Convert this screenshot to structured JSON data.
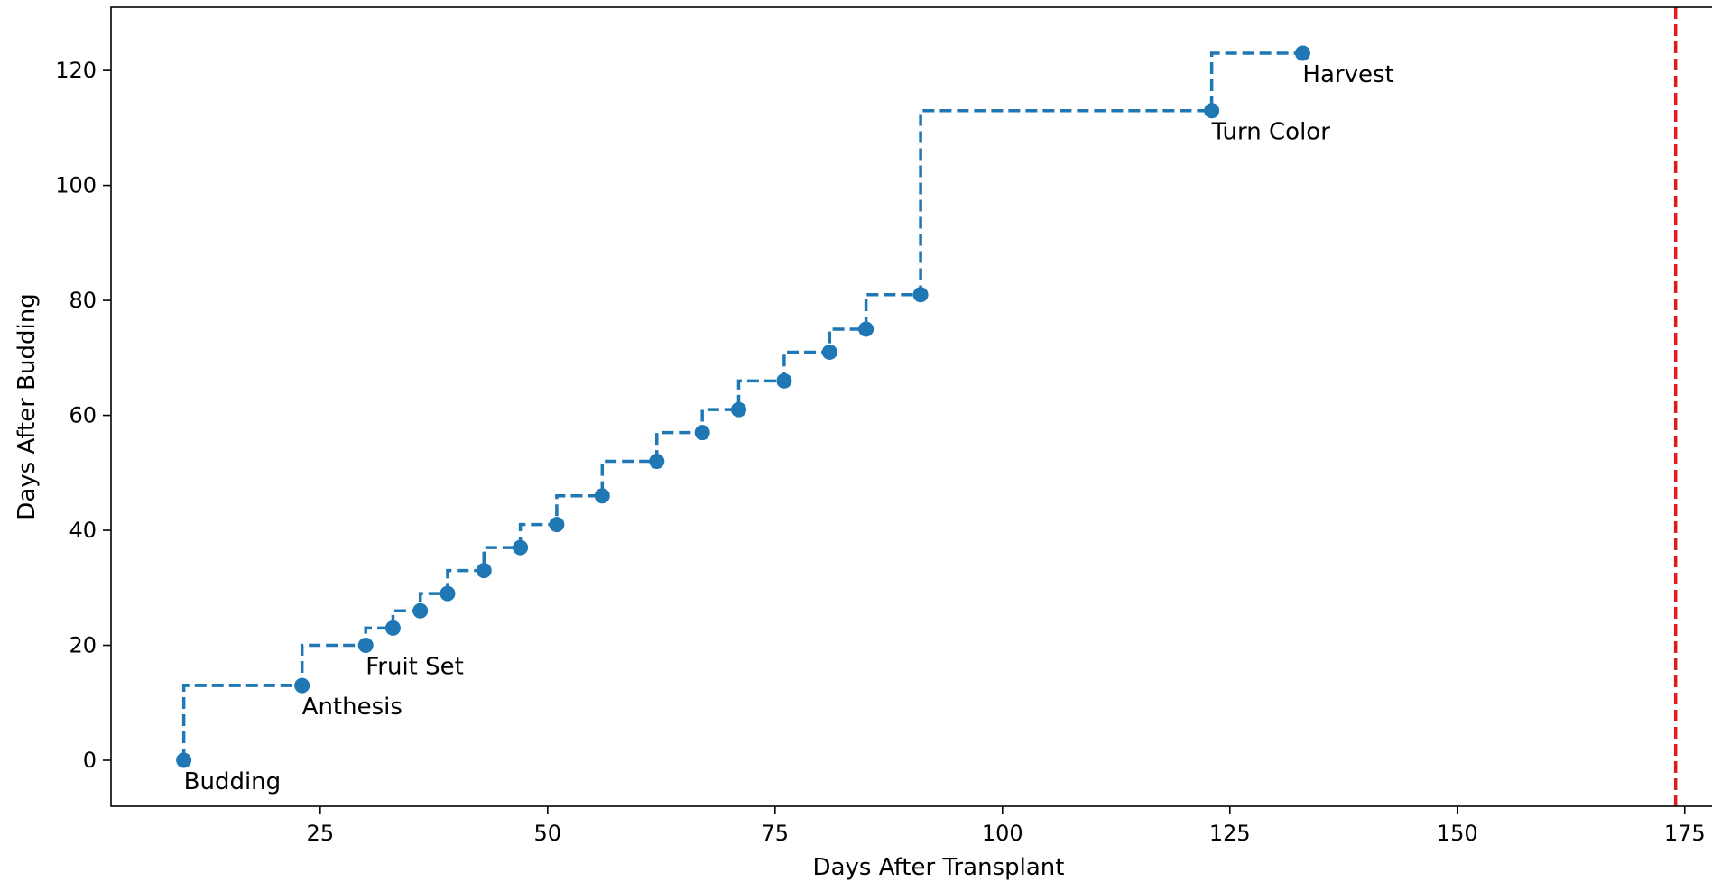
{
  "chart_data": {
    "type": "line",
    "step": "post",
    "title": "",
    "xlabel": "Days After Transplant",
    "ylabel": "Days After Budding",
    "xlim": [
      2,
      178
    ],
    "ylim": [
      -8,
      131
    ],
    "xticks": [
      25,
      50,
      75,
      100,
      125,
      150,
      175
    ],
    "yticks": [
      0,
      20,
      40,
      60,
      80,
      100,
      120
    ],
    "grid": false,
    "series": [
      {
        "color": "#1f77b4",
        "linestyle": "dashed",
        "marker": "circle",
        "points": [
          {
            "x": 10,
            "y": 0
          },
          {
            "x": 23,
            "y": 13
          },
          {
            "x": 30,
            "y": 20
          },
          {
            "x": 33,
            "y": 23
          },
          {
            "x": 36,
            "y": 26
          },
          {
            "x": 39,
            "y": 29
          },
          {
            "x": 43,
            "y": 33
          },
          {
            "x": 47,
            "y": 37
          },
          {
            "x": 51,
            "y": 41
          },
          {
            "x": 56,
            "y": 46
          },
          {
            "x": 62,
            "y": 52
          },
          {
            "x": 67,
            "y": 57
          },
          {
            "x": 71,
            "y": 61
          },
          {
            "x": 76,
            "y": 66
          },
          {
            "x": 81,
            "y": 71
          },
          {
            "x": 85,
            "y": 75
          },
          {
            "x": 91,
            "y": 81
          },
          {
            "x": 123,
            "y": 113
          },
          {
            "x": 133,
            "y": 123
          }
        ]
      }
    ],
    "annotations": [
      {
        "text": "Budding",
        "x": 10,
        "y": 0
      },
      {
        "text": "Anthesis",
        "x": 23,
        "y": 13
      },
      {
        "text": "Fruit Set",
        "x": 30,
        "y": 20
      },
      {
        "text": "Turn Color",
        "x": 123,
        "y": 113
      },
      {
        "text": "Harvest",
        "x": 133,
        "y": 123
      }
    ],
    "reference_line": {
      "orientation": "vertical",
      "x": 174,
      "color": "#e31a1c",
      "linestyle": "dashed"
    }
  }
}
